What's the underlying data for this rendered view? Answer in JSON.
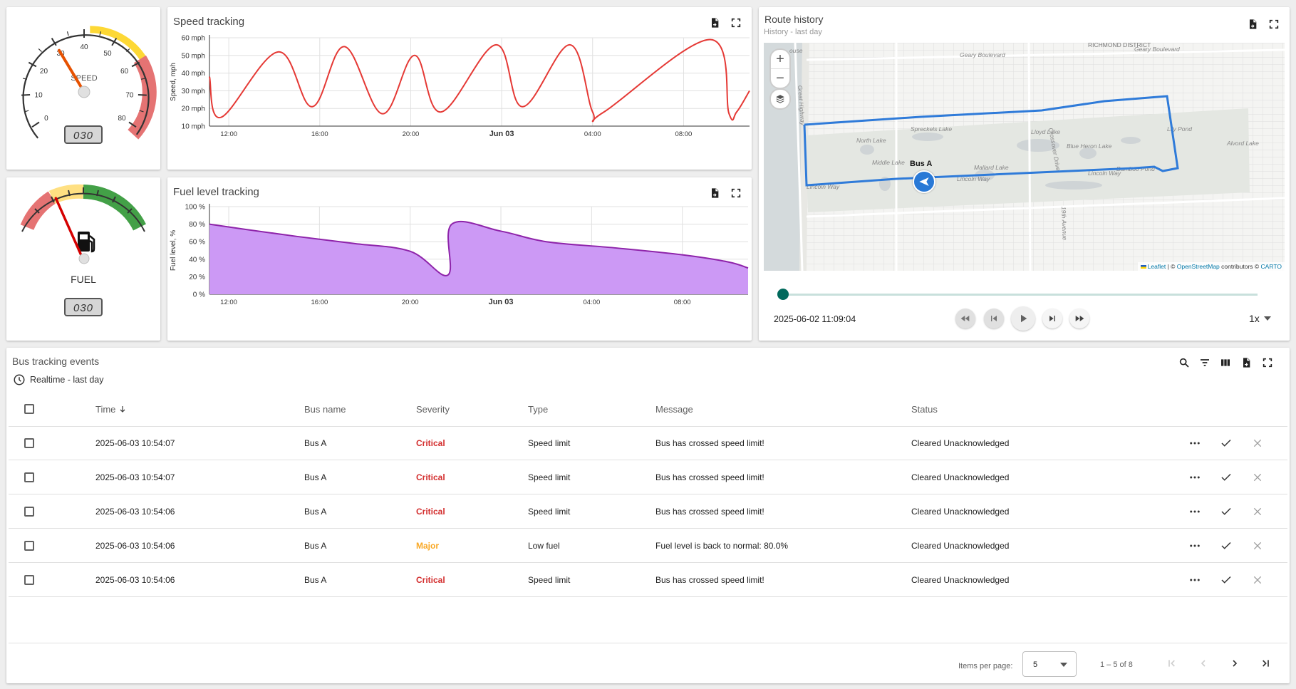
{
  "speed_gauge": {
    "label": "SPEED",
    "value": 30,
    "display": "030",
    "ticks": [
      "0",
      "10",
      "20",
      "30",
      "40",
      "50",
      "60",
      "70",
      "80"
    ],
    "needle_color": "#e65100"
  },
  "fuel_gauge": {
    "label": "FUEL",
    "value": 30,
    "display": "030",
    "needle_color": "#d50000"
  },
  "speed_chart": {
    "title": "Speed tracking",
    "chart_data": {
      "type": "line",
      "title": "Speed tracking",
      "ylabel": "Speed, mph",
      "y_ticks": [
        "10 mph",
        "20 mph",
        "30 mph",
        "40 mph",
        "50 mph",
        "60 mph"
      ],
      "ylim": [
        10,
        60
      ],
      "x_ticks": [
        "12:00",
        "16:00",
        "20:00",
        "Jun 03",
        "04:00",
        "08:00"
      ],
      "x_range": [
        "2025-06-02 11:09",
        "2025-06-03 10:54"
      ],
      "grid": true,
      "series": [
        {
          "color": "#e53935",
          "x": [
            "2025-06-02 11:09",
            "2025-06-02 11:40",
            "2025-06-02 14:10",
            "2025-06-02 15:40",
            "2025-06-02 17:05",
            "2025-06-02 18:45",
            "2025-06-02 20:10",
            "2025-06-02 21:20",
            "2025-06-02 23:45",
            "2025-06-03 00:55",
            "2025-06-03 03:00",
            "2025-06-03 04:00",
            "2025-06-03 04:30",
            "2025-06-03 09:10",
            "2025-06-03 10:00",
            "2025-06-03 10:20",
            "2025-06-03 10:54"
          ],
          "y": [
            38,
            15,
            52,
            21,
            55,
            17,
            50,
            18,
            56,
            21,
            56,
            18,
            18,
            59,
            17,
            18,
            30
          ]
        }
      ]
    }
  },
  "fuel_chart": {
    "title": "Fuel level tracking",
    "chart_data": {
      "type": "area",
      "title": "Fuel level tracking",
      "ylabel": "Fuel level, %",
      "y_ticks": [
        "0 %",
        "20 %",
        "40 %",
        "60 %",
        "80 %",
        "100 %"
      ],
      "ylim": [
        0,
        100
      ],
      "x_ticks": [
        "12:00",
        "16:00",
        "20:00",
        "Jun 03",
        "04:00",
        "08:00"
      ],
      "x_range": [
        "2025-06-02 11:09",
        "2025-06-03 10:54"
      ],
      "grid": true,
      "series": [
        {
          "color": "#8e24aa",
          "fill": "#cc99f5",
          "x": [
            "2025-06-02 11:09",
            "2025-06-02 12:45",
            "2025-06-02 15:00",
            "2025-06-02 17:30",
            "2025-06-02 20:00",
            "2025-06-02 21:40",
            "2025-06-02 21:50",
            "2025-06-03 00:00",
            "2025-06-03 02:00",
            "2025-06-03 05:00",
            "2025-06-03 08:00",
            "2025-06-03 10:00",
            "2025-06-03 10:54"
          ],
          "y": [
            80,
            74,
            66,
            58,
            49,
            22,
            80,
            72,
            60,
            53,
            45,
            37,
            30
          ]
        }
      ]
    }
  },
  "route_history": {
    "title": "Route history",
    "subtitle": "History - last day",
    "zoom_in": "+",
    "zoom_out": "−",
    "marker_label": "Bus A",
    "map_labels": {
      "district": "RICHMOND DISTRICT",
      "geary1": "Geary Boulevard",
      "geary2": "Geary Boulevard",
      "spreckels": "Spreckels Lake",
      "lloyd": "Lloyd Lake",
      "lily": "Lily Pond",
      "north": "North Lake",
      "blueheron": "Blue Heron Lake",
      "alvord": "Alvord Lake",
      "middle": "Middle Lake",
      "mallard": "Mallard Lake",
      "bambam": "Bamboo Pond",
      "lincoln1": "Lincoln Way",
      "lincoln2": "Lincoln Way",
      "crossover": "Crossover Drive",
      "greathwy": "Great Highway",
      "nineteenth": "19th Avenue",
      "house": "ouse"
    },
    "attribution": {
      "leaflet": "Leaflet",
      "sep": " | © ",
      "osm": "OpenStreetMap",
      "contrib": " contributors © ",
      "carto": "CARTO"
    },
    "timestamp": "2025-06-02 11:09:04",
    "speed_select": "1x",
    "progress": 0.0,
    "route_color": "#2979d6"
  },
  "events": {
    "title": "Bus tracking events",
    "timewindow": "Realtime - last day",
    "columns": {
      "time": "Time",
      "bus": "Bus name",
      "severity": "Severity",
      "type": "Type",
      "message": "Message",
      "status": "Status"
    },
    "rows": [
      {
        "time": "2025-06-03 10:54:07",
        "bus": "Bus A",
        "severity": "Critical",
        "sev_class": "critical",
        "type": "Speed limit",
        "message": "Bus has crossed speed limit!",
        "status": "Cleared Unacknowledged"
      },
      {
        "time": "2025-06-03 10:54:07",
        "bus": "Bus A",
        "severity": "Critical",
        "sev_class": "critical",
        "type": "Speed limit",
        "message": "Bus has crossed speed limit!",
        "status": "Cleared Unacknowledged"
      },
      {
        "time": "2025-06-03 10:54:06",
        "bus": "Bus A",
        "severity": "Critical",
        "sev_class": "critical",
        "type": "Speed limit",
        "message": "Bus has crossed speed limit!",
        "status": "Cleared Unacknowledged"
      },
      {
        "time": "2025-06-03 10:54:06",
        "bus": "Bus A",
        "severity": "Major",
        "sev_class": "major",
        "type": "Low fuel",
        "message": "Fuel level is back to normal: 80.0%",
        "status": "Cleared Unacknowledged"
      },
      {
        "time": "2025-06-03 10:54:06",
        "bus": "Bus A",
        "severity": "Critical",
        "sev_class": "critical",
        "type": "Speed limit",
        "message": "Bus has crossed speed limit!",
        "status": "Cleared Unacknowledged"
      }
    ],
    "paginator": {
      "items_per_page_label": "Items per page:",
      "page_size": "5",
      "range": "1 – 5 of 8"
    }
  }
}
